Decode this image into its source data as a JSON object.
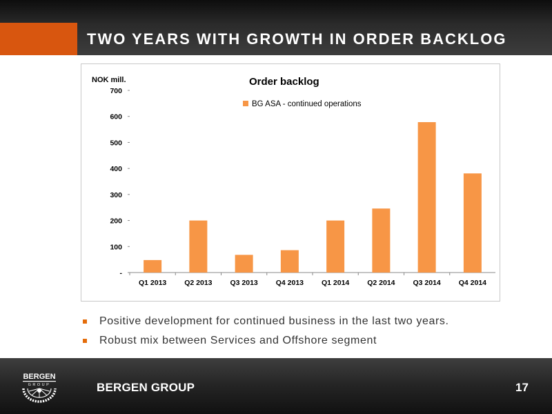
{
  "slide": {
    "title": "TWO YEARS WITH GROWTH IN ORDER BACKLOG",
    "bullets": [
      "Positive development for continued business in the last two years.",
      "Robust mix between Services and Offshore segment"
    ],
    "brand_name": "BERGEN GROUP",
    "logo_text_top": "BERGEN",
    "logo_text_bottom": "GROUP",
    "page_number": "17"
  },
  "colors": {
    "accent": "#d8560f",
    "bar": "#f79646",
    "bullet": "#e46c0a"
  },
  "chart_data": {
    "type": "bar",
    "title": "Order backlog",
    "ylabel": "NOK mill.",
    "xlabel": "",
    "categories": [
      "Q1 2013",
      "Q2 2013",
      "Q3 2013",
      "Q4 2013",
      "Q1 2014",
      "Q2 2014",
      "Q3 2014",
      "Q4 2014"
    ],
    "series": [
      {
        "name": "BG ASA - continued operations",
        "values": [
          48,
          200,
          68,
          86,
          200,
          246,
          578,
          381
        ]
      }
    ],
    "ylim": [
      0,
      700
    ],
    "yticks": [
      0,
      100,
      200,
      300,
      400,
      500,
      600,
      700
    ],
    "ytick_labels": [
      "-",
      "100",
      "200",
      "300",
      "400",
      "500",
      "600",
      "700"
    ],
    "grid": false,
    "legend": "top"
  }
}
